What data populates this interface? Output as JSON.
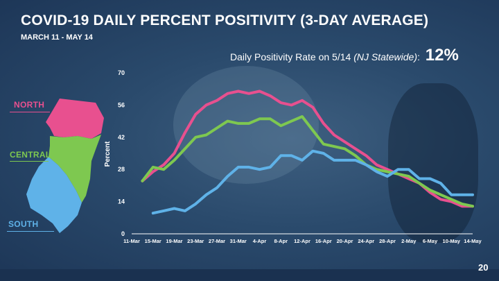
{
  "title": "COVID-19 DAILY PERCENT POSITIVITY (3-DAY AVERAGE)",
  "subtitle": "MARCH 11 - MAY 14",
  "rate": {
    "label": "Daily Positivity Rate on 5/14",
    "note": "(NJ Statewide)",
    "colon": ":",
    "value": "12%"
  },
  "page_number": "20",
  "regions": {
    "north": "NORTH",
    "central": "CENTRAL",
    "south": "SOUTH"
  },
  "colors": {
    "north": "#e8508f",
    "central": "#7ec850",
    "south": "#5fb2e8"
  },
  "chart_data": {
    "type": "line",
    "title": "COVID-19 DAILY PERCENT POSITIVITY (3-DAY AVERAGE)",
    "xlabel": "",
    "ylabel": "Percent",
    "ylim": [
      0,
      70
    ],
    "yticks": [
      "0",
      "14",
      "28",
      "42",
      "56",
      "70"
    ],
    "grid": false,
    "legend": "map regions at left",
    "tick_labels": [
      "11-Mar",
      "15-Mar",
      "19-Mar",
      "23-Mar",
      "27-Mar",
      "31-Mar",
      "4-Apr",
      "8-Apr",
      "12-Apr",
      "16-Apr",
      "20-Apr",
      "24-Apr",
      "28-Apr",
      "2-May",
      "6-May",
      "10-May",
      "14-May"
    ],
    "n_days": 65,
    "series": [
      {
        "name": "North",
        "color": "#e8508f",
        "x": [
          2,
          4,
          6,
          8,
          10,
          12,
          14,
          16,
          18,
          20,
          22,
          24,
          26,
          28,
          30,
          32,
          34,
          36,
          38,
          40,
          42,
          44,
          46,
          48,
          50,
          52,
          54,
          56,
          58,
          60,
          62,
          64
        ],
        "values": [
          23,
          27,
          30,
          35,
          44,
          52,
          56,
          58,
          61,
          62,
          61,
          62,
          60,
          57,
          56,
          58,
          55,
          48,
          43,
          40,
          37,
          34,
          30,
          28,
          26,
          24,
          22,
          18,
          15,
          14,
          12,
          12
        ]
      },
      {
        "name": "Central",
        "color": "#7ec850",
        "x": [
          2,
          4,
          6,
          8,
          10,
          12,
          14,
          16,
          18,
          20,
          22,
          24,
          26,
          28,
          30,
          32,
          34,
          36,
          38,
          40,
          42,
          44,
          46,
          48,
          50,
          52,
          54,
          56,
          58,
          60,
          62,
          64
        ],
        "values": [
          23,
          29,
          28,
          32,
          37,
          42,
          43,
          46,
          49,
          48,
          48,
          50,
          50,
          47,
          49,
          51,
          45,
          39,
          38,
          37,
          34,
          30,
          28,
          27,
          26,
          25,
          22,
          19,
          17,
          15,
          13,
          12
        ]
      },
      {
        "name": "South",
        "color": "#5fb2e8",
        "x": [
          4,
          6,
          8,
          10,
          12,
          14,
          16,
          18,
          20,
          22,
          24,
          26,
          28,
          30,
          32,
          34,
          36,
          38,
          40,
          42,
          44,
          46,
          48,
          50,
          52,
          54,
          56,
          58,
          60,
          62,
          64
        ],
        "values": [
          9,
          10,
          11,
          10,
          13,
          17,
          20,
          25,
          29,
          29,
          28,
          29,
          34,
          34,
          32,
          36,
          35,
          32,
          32,
          32,
          30,
          27,
          25,
          28,
          28,
          24,
          24,
          22,
          17,
          17,
          17
        ]
      }
    ]
  }
}
